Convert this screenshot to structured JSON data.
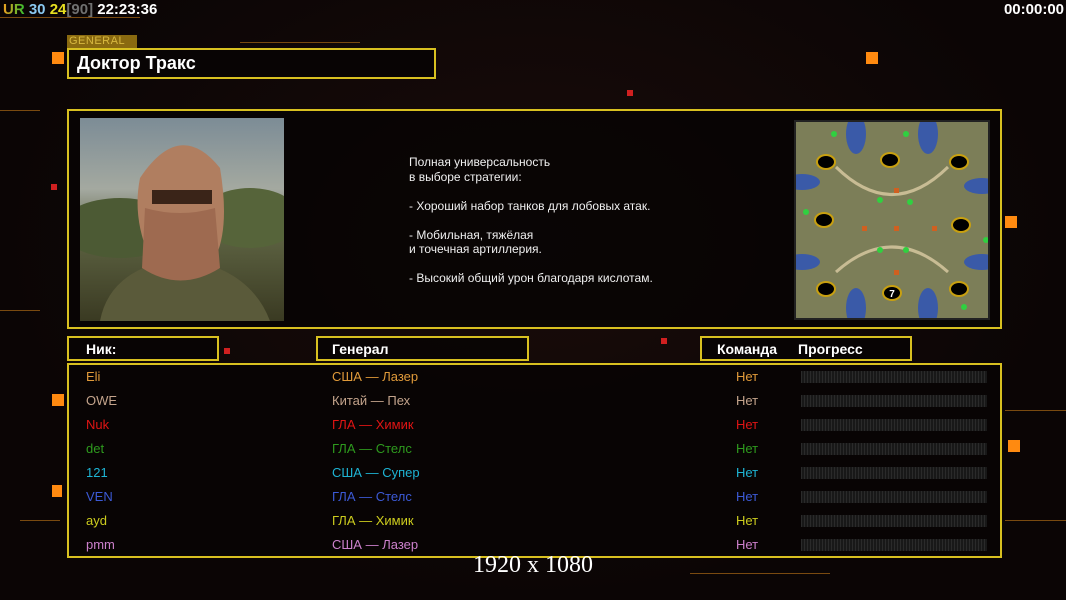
{
  "hud": {
    "ur": "UR",
    "a": "30",
    "b": "24",
    "c": "[90]",
    "clock": "22:23:36",
    "timer": "00:00:00"
  },
  "general": {
    "tag": "GENERAL",
    "name": "Доктор Тракс",
    "description": "Полная универсальность\nв выборе стратегии:\n\n- Хороший набор танков для лобовых атак.\n\n- Мобильная, тяжёлая\nи точечная артиллерия.\n\n- Высокий общий урон благодаря кислотам."
  },
  "map": {
    "start_marker": "7"
  },
  "table": {
    "headers": {
      "nick": "Ник:",
      "general": "Генерал",
      "team": "Команда",
      "progress": "Прогресс"
    },
    "rows": [
      {
        "nick": "Eli",
        "general": "США — Лазер",
        "team": "Нет",
        "color": "#e09a3a",
        "progress": 0
      },
      {
        "nick": "OWE",
        "general": "Китай — Пех",
        "team": "Нет",
        "color": "#c4a48c",
        "progress": 0
      },
      {
        "nick": "Nuk",
        "general": "ГЛА — Химик",
        "team": "Нет",
        "color": "#e01414",
        "progress": 0
      },
      {
        "nick": "det",
        "general": "ГЛА — Стелс",
        "team": "Нет",
        "color": "#2e9a1e",
        "progress": 0
      },
      {
        "nick": "121",
        "general": "США — Супер",
        "team": "Нет",
        "color": "#1eb4d4",
        "progress": 0
      },
      {
        "nick": "VEN",
        "general": "ГЛА — Стелс",
        "team": "Нет",
        "color": "#3c5ad6",
        "progress": 0
      },
      {
        "nick": "ayd",
        "general": "ГЛА — Химик",
        "team": "Нет",
        "color": "#cccc1e",
        "progress": 0
      },
      {
        "nick": "pmm",
        "general": "США — Лазер",
        "team": "Нет",
        "color": "#cc80cc",
        "progress": 0
      }
    ]
  },
  "resolution": "1920 x 1080"
}
